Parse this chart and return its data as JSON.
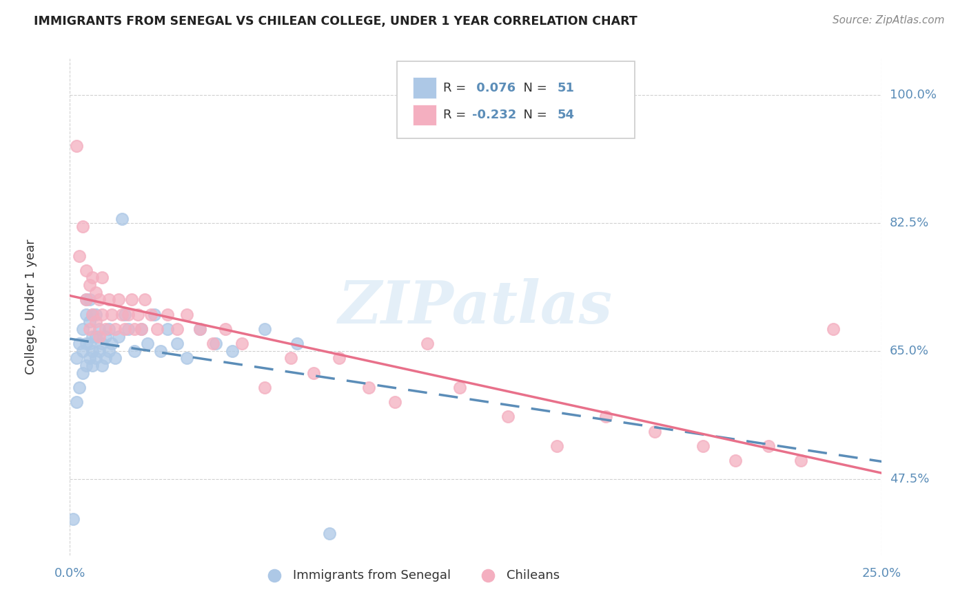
{
  "title": "IMMIGRANTS FROM SENEGAL VS CHILEAN COLLEGE, UNDER 1 YEAR CORRELATION CHART",
  "source": "Source: ZipAtlas.com",
  "ylabel": "College, Under 1 year",
  "y_ticks_labels": [
    "100.0%",
    "82.5%",
    "65.0%",
    "47.5%"
  ],
  "y_tick_vals": [
    1.0,
    0.825,
    0.65,
    0.475
  ],
  "x_ticks_labels": [
    "0.0%",
    "25.0%"
  ],
  "xlim": [
    0.0,
    0.25
  ],
  "ylim": [
    0.37,
    1.05
  ],
  "legend_label1": "Immigrants from Senegal",
  "legend_label2": "Chileans",
  "R1": 0.076,
  "N1": 51,
  "R2": -0.232,
  "N2": 54,
  "color1": "#adc8e6",
  "color2": "#f4afc0",
  "line1_color": "#5b8db8",
  "line2_color": "#e8708a",
  "watermark": "ZIPatlas",
  "background_color": "#ffffff",
  "grid_color": "#d0d0d0",
  "blue_text_color": "#5b8db8",
  "title_color": "#222222",
  "source_color": "#888888",
  "scatter1_x": [
    0.001,
    0.002,
    0.002,
    0.003,
    0.003,
    0.004,
    0.004,
    0.004,
    0.005,
    0.005,
    0.005,
    0.005,
    0.006,
    0.006,
    0.006,
    0.006,
    0.007,
    0.007,
    0.007,
    0.007,
    0.008,
    0.008,
    0.008,
    0.009,
    0.009,
    0.01,
    0.01,
    0.011,
    0.011,
    0.012,
    0.012,
    0.013,
    0.014,
    0.015,
    0.016,
    0.017,
    0.018,
    0.02,
    0.022,
    0.024,
    0.026,
    0.028,
    0.03,
    0.033,
    0.036,
    0.04,
    0.045,
    0.05,
    0.06,
    0.07,
    0.08
  ],
  "scatter1_y": [
    0.42,
    0.58,
    0.64,
    0.6,
    0.66,
    0.62,
    0.65,
    0.68,
    0.63,
    0.66,
    0.7,
    0.72,
    0.64,
    0.66,
    0.69,
    0.72,
    0.63,
    0.65,
    0.67,
    0.7,
    0.64,
    0.67,
    0.7,
    0.65,
    0.68,
    0.63,
    0.66,
    0.64,
    0.67,
    0.65,
    0.68,
    0.66,
    0.64,
    0.67,
    0.83,
    0.7,
    0.68,
    0.65,
    0.68,
    0.66,
    0.7,
    0.65,
    0.68,
    0.66,
    0.64,
    0.68,
    0.66,
    0.65,
    0.68,
    0.66,
    0.4
  ],
  "scatter2_x": [
    0.002,
    0.003,
    0.004,
    0.005,
    0.005,
    0.006,
    0.006,
    0.007,
    0.007,
    0.008,
    0.008,
    0.009,
    0.009,
    0.01,
    0.01,
    0.011,
    0.012,
    0.013,
    0.014,
    0.015,
    0.016,
    0.017,
    0.018,
    0.019,
    0.02,
    0.021,
    0.022,
    0.023,
    0.025,
    0.027,
    0.03,
    0.033,
    0.036,
    0.04,
    0.044,
    0.048,
    0.053,
    0.06,
    0.068,
    0.075,
    0.083,
    0.092,
    0.1,
    0.11,
    0.12,
    0.135,
    0.15,
    0.165,
    0.18,
    0.195,
    0.205,
    0.215,
    0.225,
    0.235
  ],
  "scatter2_y": [
    0.93,
    0.78,
    0.82,
    0.72,
    0.76,
    0.68,
    0.74,
    0.7,
    0.75,
    0.69,
    0.73,
    0.67,
    0.72,
    0.7,
    0.75,
    0.68,
    0.72,
    0.7,
    0.68,
    0.72,
    0.7,
    0.68,
    0.7,
    0.72,
    0.68,
    0.7,
    0.68,
    0.72,
    0.7,
    0.68,
    0.7,
    0.68,
    0.7,
    0.68,
    0.66,
    0.68,
    0.66,
    0.6,
    0.64,
    0.62,
    0.64,
    0.6,
    0.58,
    0.66,
    0.6,
    0.56,
    0.52,
    0.56,
    0.54,
    0.52,
    0.5,
    0.52,
    0.5,
    0.68
  ]
}
